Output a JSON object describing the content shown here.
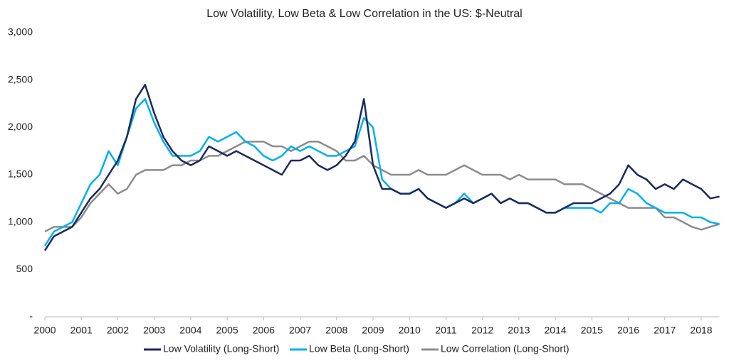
{
  "chart_data": {
    "type": "line",
    "title": "Low Volatility, Low Beta & Low Correlation in the US: $-Neutral",
    "x": [
      2000,
      2000.25,
      2000.5,
      2000.75,
      2001,
      2001.25,
      2001.5,
      2001.75,
      2002,
      2002.25,
      2002.5,
      2002.75,
      2003,
      2003.25,
      2003.5,
      2003.75,
      2004,
      2004.25,
      2004.5,
      2004.75,
      2005,
      2005.25,
      2005.5,
      2005.75,
      2006,
      2006.25,
      2006.5,
      2006.75,
      2007,
      2007.25,
      2007.5,
      2007.75,
      2008,
      2008.25,
      2008.5,
      2008.75,
      2009,
      2009.25,
      2009.5,
      2009.75,
      2010,
      2010.25,
      2010.5,
      2010.75,
      2011,
      2011.25,
      2011.5,
      2011.75,
      2012,
      2012.25,
      2012.5,
      2012.75,
      2013,
      2013.25,
      2013.5,
      2013.75,
      2014,
      2014.25,
      2014.5,
      2014.75,
      2015,
      2015.25,
      2015.5,
      2015.75,
      2016,
      2016.25,
      2016.5,
      2016.75,
      2017,
      2017.25,
      2017.5,
      2017.75,
      2018,
      2018.25,
      2018.5
    ],
    "series": [
      {
        "name": "Low Volatility (Long-Short)",
        "color": "#1b2a5e",
        "values": [
          700,
          850,
          900,
          950,
          1100,
          1250,
          1350,
          1500,
          1650,
          1900,
          2300,
          2450,
          2150,
          1900,
          1750,
          1650,
          1600,
          1650,
          1800,
          1750,
          1700,
          1750,
          1700,
          1650,
          1600,
          1550,
          1500,
          1650,
          1650,
          1700,
          1600,
          1550,
          1600,
          1700,
          1850,
          2300,
          1600,
          1350,
          1350,
          1300,
          1300,
          1350,
          1250,
          1200,
          1150,
          1200,
          1250,
          1200,
          1250,
          1300,
          1200,
          1250,
          1200,
          1200,
          1150,
          1100,
          1100,
          1150,
          1200,
          1200,
          1200,
          1250,
          1300,
          1400,
          1600,
          1500,
          1450,
          1350,
          1400,
          1350,
          1450,
          1400,
          1350,
          1250,
          1270
        ]
      },
      {
        "name": "Low Beta (Long-Short)",
        "color": "#00b0f0",
        "values": [
          750,
          900,
          950,
          1000,
          1200,
          1400,
          1500,
          1750,
          1600,
          1900,
          2200,
          2300,
          2050,
          1850,
          1700,
          1700,
          1700,
          1750,
          1900,
          1850,
          1900,
          1950,
          1850,
          1800,
          1700,
          1650,
          1700,
          1800,
          1750,
          1800,
          1750,
          1700,
          1700,
          1750,
          1800,
          2100,
          2000,
          1450,
          1350,
          1300,
          1300,
          1350,
          1250,
          1200,
          1150,
          1200,
          1300,
          1200,
          1250,
          1300,
          1200,
          1250,
          1200,
          1200,
          1150,
          1100,
          1100,
          1150,
          1150,
          1150,
          1150,
          1100,
          1200,
          1200,
          1350,
          1300,
          1200,
          1150,
          1100,
          1100,
          1100,
          1050,
          1050,
          1000,
          980
        ]
      },
      {
        "name": "Low Correlation (Long-Short)",
        "color": "#8c8c8c",
        "values": [
          900,
          950,
          950,
          950,
          1050,
          1200,
          1300,
          1400,
          1300,
          1350,
          1500,
          1550,
          1550,
          1550,
          1600,
          1600,
          1650,
          1650,
          1700,
          1700,
          1750,
          1800,
          1850,
          1850,
          1850,
          1800,
          1800,
          1750,
          1800,
          1850,
          1850,
          1800,
          1750,
          1650,
          1650,
          1700,
          1600,
          1550,
          1500,
          1500,
          1500,
          1550,
          1500,
          1500,
          1500,
          1550,
          1600,
          1550,
          1500,
          1500,
          1500,
          1450,
          1500,
          1450,
          1450,
          1450,
          1450,
          1400,
          1400,
          1400,
          1350,
          1300,
          1250,
          1200,
          1150,
          1150,
          1150,
          1150,
          1050,
          1050,
          1000,
          950,
          920,
          950,
          980
        ]
      }
    ],
    "xlim": [
      2000,
      2018.5
    ],
    "xticks": [
      2000,
      2001,
      2002,
      2003,
      2004,
      2005,
      2006,
      2007,
      2008,
      2009,
      2010,
      2011,
      2012,
      2013,
      2014,
      2015,
      2016,
      2017,
      2018
    ],
    "ylim": [
      0,
      3000
    ],
    "yticks": [
      {
        "value": 0,
        "label": "-"
      },
      500,
      {
        "value": 1000,
        "label": "1,000"
      },
      {
        "value": 1500,
        "label": "1,500"
      },
      {
        "value": 2000,
        "label": "2,000"
      },
      {
        "value": 2500,
        "label": "2,500"
      },
      {
        "value": 3000,
        "label": "3,000"
      }
    ],
    "legend": "bottom"
  }
}
